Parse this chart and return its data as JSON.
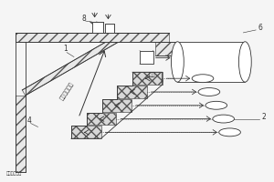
{
  "bg_color": "#f5f5f5",
  "line_color": "#333333",
  "hatch_ec": "#555555",
  "label_1": "1",
  "label_2": "2",
  "label_4": "4",
  "label_6": "6",
  "label_8": "8",
  "text_gas": "气体运动方向",
  "text_fixed": "固废",
  "text_bottom": "固废运动方向",
  "font_size_label": 5.5,
  "font_size_text": 4.5,
  "wall_hatch": "///",
  "step_hatch": "xxx"
}
